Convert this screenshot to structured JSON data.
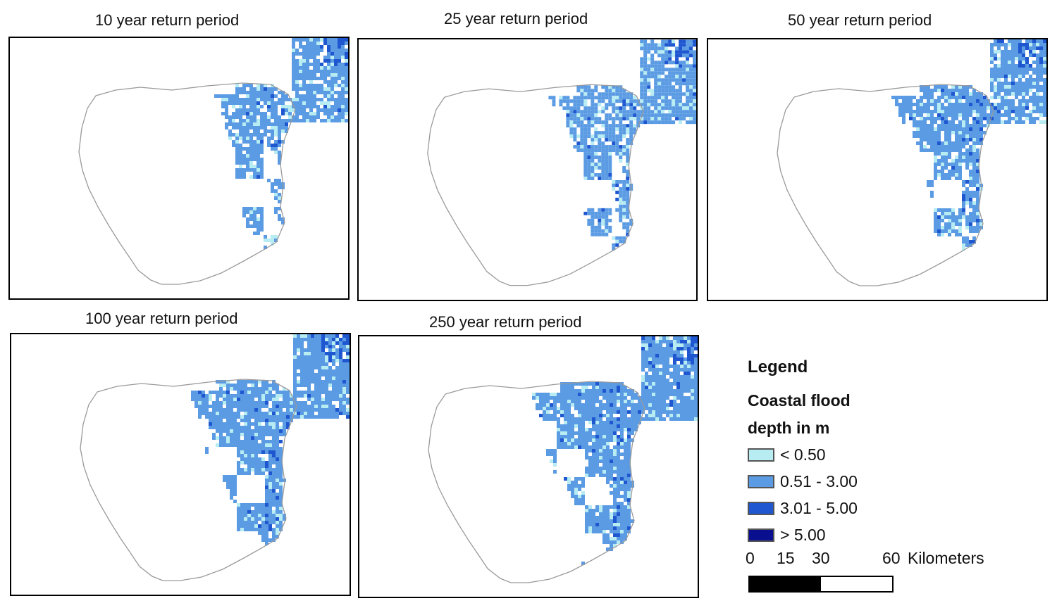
{
  "panels": [
    {
      "title": "10 year return period",
      "level": 0
    },
    {
      "title": "25 year return period",
      "level": 1
    },
    {
      "title": "50 year return period",
      "level": 2
    },
    {
      "title": "100 year return period",
      "level": 3
    },
    {
      "title": "250 year return period",
      "level": 4
    }
  ],
  "legend": {
    "title": "Legend",
    "subtitle_line1": "Coastal flood",
    "subtitle_line2": "depth in m",
    "classes": [
      {
        "label": "< 0.50",
        "color": "#b7ecf3"
      },
      {
        "label": "0.51 - 3.00",
        "color": "#5b9be3"
      },
      {
        "label": "3.01 - 5.00",
        "color": "#1f57d1"
      },
      {
        "label": "> 5.00",
        "color": "#0a0f8f"
      }
    ]
  },
  "scale_bar": {
    "labels": [
      "0",
      "15",
      "30",
      "60"
    ],
    "unit": "Kilometers"
  },
  "colors": {
    "outline": "#9a9a9a",
    "frame": "#000000",
    "bar_dark": "#000000",
    "bar_light": "#ffffff"
  }
}
